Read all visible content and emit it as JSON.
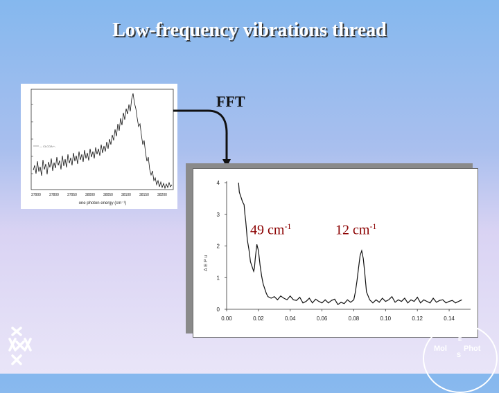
{
  "slide": {
    "title": "Low-frequency vibrations thread",
    "fft_label": "FFT"
  },
  "spectrum_inset": {
    "xlabel": "one photon energy (cm⁻¹)",
    "legend_text": "— CLCOA +..",
    "x_ticks": [
      "37900",
      "37800",
      "37950",
      "38000",
      "38050",
      "38100",
      "38150",
      "38200"
    ]
  },
  "fft_plot": {
    "y_ticks": [
      "0",
      "1",
      "2",
      "3",
      "4"
    ],
    "x_ticks": [
      "0.00",
      "0.02",
      "0.04",
      "0.06",
      "0.08",
      "0.10",
      "0.12",
      "0.14"
    ],
    "ylabel_fragment": "A E P u",
    "peaks": [
      {
        "value": "49 cm",
        "exp": "-1"
      },
      {
        "value": "12 cm",
        "exp": "-1"
      }
    ]
  },
  "chart_data": {
    "type": "line",
    "title": "",
    "xlabel": "",
    "ylabel": "",
    "xlim": [
      0.0,
      0.15
    ],
    "ylim": [
      0,
      4
    ],
    "x_ticks": [
      0.0,
      0.02,
      0.04,
      0.06,
      0.08,
      0.1,
      0.12,
      0.14
    ],
    "y_ticks": [
      0,
      1,
      2,
      3,
      4
    ],
    "series": [
      {
        "x": [
          0.0075,
          0.008,
          0.009,
          0.01,
          0.011,
          0.0115,
          0.012,
          0.0125,
          0.013,
          0.014,
          0.0145,
          0.015,
          0.016,
          0.017,
          0.0175,
          0.018,
          0.019,
          0.02,
          0.021,
          0.022,
          0.023,
          0.024,
          0.025,
          0.026,
          0.028,
          0.03,
          0.032,
          0.034,
          0.036,
          0.038,
          0.04,
          0.042,
          0.044,
          0.046,
          0.048,
          0.05,
          0.052,
          0.054,
          0.056,
          0.058,
          0.06,
          0.062,
          0.064,
          0.066,
          0.068,
          0.07,
          0.072,
          0.074,
          0.076,
          0.078,
          0.08,
          0.081,
          0.082,
          0.083,
          0.084,
          0.085,
          0.086,
          0.087,
          0.088,
          0.09,
          0.092,
          0.094,
          0.096,
          0.098,
          0.1,
          0.102,
          0.104,
          0.106,
          0.108,
          0.11,
          0.112,
          0.114,
          0.116,
          0.118,
          0.12,
          0.122,
          0.124,
          0.126,
          0.128,
          0.13,
          0.132,
          0.134,
          0.136,
          0.138,
          0.14,
          0.142,
          0.144,
          0.146,
          0.148
        ],
        "y": [
          4.0,
          3.7,
          3.55,
          3.4,
          3.3,
          3.0,
          2.8,
          2.5,
          2.2,
          1.9,
          1.7,
          1.5,
          1.35,
          1.2,
          1.3,
          1.6,
          2.05,
          1.85,
          1.4,
          1.05,
          0.8,
          0.65,
          0.5,
          0.4,
          0.35,
          0.4,
          0.3,
          0.42,
          0.35,
          0.3,
          0.42,
          0.3,
          0.28,
          0.38,
          0.2,
          0.25,
          0.35,
          0.2,
          0.32,
          0.25,
          0.2,
          0.3,
          0.2,
          0.28,
          0.32,
          0.15,
          0.22,
          0.18,
          0.3,
          0.22,
          0.3,
          0.55,
          0.9,
          1.3,
          1.7,
          1.85,
          1.6,
          1.1,
          0.55,
          0.3,
          0.2,
          0.3,
          0.22,
          0.35,
          0.25,
          0.3,
          0.4,
          0.22,
          0.3,
          0.25,
          0.35,
          0.2,
          0.3,
          0.25,
          0.38,
          0.2,
          0.3,
          0.25,
          0.2,
          0.35,
          0.22,
          0.28,
          0.3,
          0.2,
          0.25,
          0.28,
          0.2,
          0.25,
          0.3
        ]
      }
    ]
  }
}
